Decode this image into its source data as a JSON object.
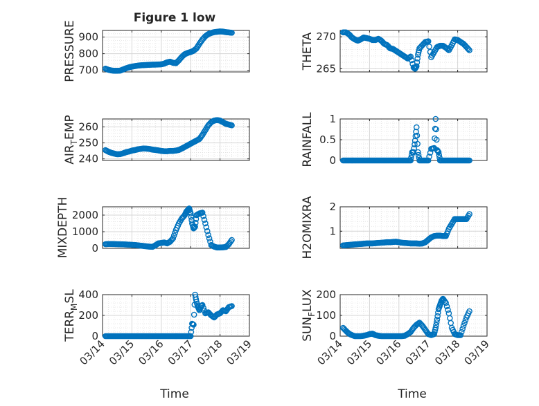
{
  "figure": {
    "title": "Figure 1 low",
    "xlabel": "Time",
    "xticks": [
      "03/14",
      "03/15",
      "03/16",
      "03/17",
      "03/18",
      "03/19"
    ],
    "marker_color": "#0072BD"
  },
  "chart_data": [
    {
      "type": "scatter",
      "ylabel": "PRESSURE",
      "ylim": [
        690,
        940
      ],
      "yticks": [
        700,
        800,
        900
      ],
      "xrange": [
        "03/14",
        "03/19"
      ],
      "grid": true,
      "x": [
        0.1,
        0.2,
        0.3,
        0.4,
        0.5,
        0.6,
        0.7,
        0.8,
        0.9,
        1.0,
        1.1,
        1.2,
        1.3,
        1.4,
        1.5,
        1.6,
        1.7,
        1.8,
        1.9,
        2.0,
        2.1,
        2.2,
        2.3,
        2.4,
        2.5,
        2.6,
        2.7,
        2.8,
        2.9,
        3.0,
        3.1,
        3.2,
        3.3,
        3.4,
        3.5,
        3.6,
        3.7,
        3.8,
        3.9,
        4.0,
        4.1,
        4.2,
        4.3,
        4.4
      ],
      "y": [
        710,
        703,
        699,
        697,
        697,
        698,
        705,
        712,
        718,
        722,
        725,
        728,
        730,
        731,
        732,
        733,
        734,
        734,
        735,
        736,
        740,
        748,
        752,
        745,
        743,
        760,
        781,
        797,
        805,
        810,
        818,
        832,
        860,
        885,
        905,
        918,
        925,
        930,
        932,
        934,
        933,
        930,
        928,
        926
      ]
    },
    {
      "type": "scatter",
      "ylabel": "THETA",
      "ylim": [
        264.5,
        271
      ],
      "yticks": [
        265,
        270
      ],
      "xrange": [
        "03/14",
        "03/19"
      ],
      "grid": true,
      "x": [
        0.1,
        0.2,
        0.3,
        0.4,
        0.5,
        0.6,
        0.7,
        0.8,
        0.9,
        1.0,
        1.1,
        1.2,
        1.3,
        1.4,
        1.5,
        1.6,
        1.7,
        1.8,
        1.9,
        2.0,
        2.1,
        2.2,
        2.3,
        2.4,
        2.5,
        2.55,
        2.6,
        2.65,
        2.7,
        2.8,
        2.9,
        3.0,
        3.1,
        3.2,
        3.3,
        3.4,
        3.5,
        3.6,
        3.7,
        3.8,
        3.9,
        4.0,
        4.1,
        4.2,
        4.3,
        4.4
      ],
      "y": [
        270.7,
        270.7,
        270.4,
        269.9,
        269.6,
        269.4,
        269.6,
        269.9,
        269.8,
        269.7,
        269.5,
        269.5,
        269.7,
        269.4,
        268.9,
        268.7,
        268.2,
        268.1,
        267.8,
        267.5,
        267.2,
        266.9,
        266.6,
        266.9,
        265.2,
        265,
        265.4,
        267.2,
        268.2,
        268.7,
        269.2,
        269.3,
        266.8,
        267.6,
        268.4,
        268.6,
        268.6,
        268.3,
        267.9,
        268.7,
        269.6,
        269.5,
        269.2,
        268.9,
        268.4,
        267.9
      ]
    },
    {
      "type": "scatter",
      "ylabel": "AIR_TEMP",
      "ylim": [
        239,
        265
      ],
      "yticks": [
        240,
        250,
        260
      ],
      "xrange": [
        "03/14",
        "03/19"
      ],
      "grid": true,
      "x": [
        0.1,
        0.2,
        0.3,
        0.4,
        0.5,
        0.6,
        0.7,
        0.8,
        0.9,
        1.0,
        1.1,
        1.2,
        1.3,
        1.4,
        1.5,
        1.6,
        1.7,
        1.8,
        1.9,
        2.0,
        2.1,
        2.2,
        2.3,
        2.4,
        2.5,
        2.6,
        2.7,
        2.8,
        2.9,
        3.0,
        3.1,
        3.2,
        3.3,
        3.4,
        3.5,
        3.6,
        3.7,
        3.8,
        3.9,
        4.0,
        4.1,
        4.2,
        4.3,
        4.4
      ],
      "y": [
        245.5,
        244.5,
        243.8,
        243.3,
        242.9,
        243,
        243.5,
        244.2,
        244.6,
        245.2,
        245.5,
        246,
        246.3,
        246.5,
        246.4,
        246.2,
        245.8,
        245.6,
        245.3,
        245,
        244.8,
        244.8,
        245,
        245,
        245.2,
        245.6,
        246.5,
        247.5,
        248.5,
        249.5,
        250.5,
        251.5,
        252.5,
        255,
        258,
        261,
        263,
        264,
        264.3,
        264,
        263,
        262,
        261.5,
        261
      ]
    },
    {
      "type": "scatter",
      "ylabel": "RAINFALL",
      "ylim": [
        0,
        1
      ],
      "yticks": [
        0,
        0.5,
        1
      ],
      "xrange": [
        "03/14",
        "03/19"
      ],
      "grid": true,
      "x": [
        0.1,
        0.2,
        0.3,
        0.4,
        0.5,
        0.6,
        0.7,
        0.8,
        0.9,
        1.0,
        1.1,
        1.2,
        1.3,
        1.4,
        1.5,
        1.6,
        1.7,
        1.8,
        1.9,
        2.0,
        2.1,
        2.2,
        2.3,
        2.4,
        2.45,
        2.5,
        2.55,
        2.6,
        2.65,
        2.7,
        2.8,
        2.9,
        3.0,
        3.1,
        3.2,
        3.25,
        3.3,
        3.35,
        3.4,
        3.5,
        3.6,
        3.7,
        3.8,
        3.9,
        4.0,
        4.1,
        4.2,
        4.3,
        4.4
      ],
      "y": [
        0,
        0,
        0,
        0,
        0,
        0,
        0,
        0,
        0,
        0,
        0,
        0,
        0,
        0,
        0,
        0,
        0,
        0,
        0,
        0,
        0,
        0,
        0,
        0,
        0.2,
        0.2,
        0.48,
        0.8,
        0.2,
        0,
        0,
        0,
        0,
        0.28,
        0.3,
        1,
        0.25,
        0.2,
        0,
        0,
        0,
        0,
        0,
        0,
        0,
        0,
        0,
        0,
        0
      ]
    },
    {
      "type": "scatter",
      "ylabel": "MIXDEPTH",
      "ylim": [
        0,
        2500
      ],
      "yticks": [
        0,
        1000,
        2000
      ],
      "xrange": [
        "03/14",
        "03/19"
      ],
      "grid": true,
      "x": [
        0.1,
        0.2,
        0.3,
        0.4,
        0.5,
        0.6,
        0.7,
        0.8,
        0.9,
        1.0,
        1.1,
        1.2,
        1.3,
        1.4,
        1.5,
        1.6,
        1.7,
        1.8,
        1.9,
        2.0,
        2.1,
        2.2,
        2.3,
        2.4,
        2.5,
        2.6,
        2.7,
        2.8,
        2.85,
        2.9,
        2.95,
        3.0,
        3.05,
        3.1,
        3.15,
        3.2,
        3.3,
        3.4,
        3.5,
        3.6,
        3.7,
        3.8,
        3.9,
        4.0,
        4.1,
        4.2,
        4.3,
        4.4
      ],
      "y": [
        250,
        260,
        260,
        255,
        250,
        245,
        240,
        230,
        220,
        210,
        200,
        180,
        160,
        140,
        120,
        100,
        90,
        180,
        300,
        320,
        350,
        300,
        400,
        600,
        1100,
        1500,
        1800,
        2000,
        2200,
        2300,
        2400,
        2100,
        1500,
        1200,
        1300,
        2000,
        2100,
        2150,
        1500,
        800,
        200,
        100,
        50,
        50,
        60,
        80,
        250,
        500
      ]
    },
    {
      "type": "scatter",
      "ylabel": "H2OMIXRA",
      "ylim": [
        0.3,
        2
      ],
      "yticks": [
        1,
        2
      ],
      "xrange": [
        "03/14",
        "03/19"
      ],
      "grid": true,
      "x": [
        0.1,
        0.2,
        0.3,
        0.4,
        0.5,
        0.6,
        0.7,
        0.8,
        0.9,
        1.0,
        1.1,
        1.2,
        1.3,
        1.4,
        1.5,
        1.6,
        1.7,
        1.8,
        1.9,
        2.0,
        2.1,
        2.2,
        2.3,
        2.4,
        2.5,
        2.6,
        2.7,
        2.8,
        2.9,
        3.0,
        3.1,
        3.2,
        3.3,
        3.4,
        3.5,
        3.6,
        3.7,
        3.8,
        3.9,
        4.0,
        4.1,
        4.2,
        4.3,
        4.4
      ],
      "y": [
        0.42,
        0.43,
        0.44,
        0.45,
        0.46,
        0.47,
        0.48,
        0.49,
        0.5,
        0.5,
        0.5,
        0.51,
        0.52,
        0.53,
        0.54,
        0.55,
        0.55,
        0.56,
        0.57,
        0.55,
        0.53,
        0.52,
        0.51,
        0.5,
        0.5,
        0.5,
        0.49,
        0.5,
        0.55,
        0.65,
        0.75,
        0.8,
        0.82,
        0.82,
        0.8,
        0.8,
        1.1,
        1.3,
        1.5,
        1.5,
        1.5,
        1.5,
        1.5,
        1.7
      ]
    },
    {
      "type": "scatter",
      "ylabel": "TERR_MSL",
      "ylim": [
        0,
        400
      ],
      "yticks": [
        0,
        200,
        400
      ],
      "xrange": [
        "03/14",
        "03/19"
      ],
      "grid": true,
      "x": [
        0.1,
        0.2,
        0.3,
        0.4,
        0.5,
        0.6,
        0.7,
        0.8,
        0.9,
        1.0,
        1.1,
        1.2,
        1.3,
        1.4,
        1.5,
        1.6,
        1.7,
        1.8,
        1.9,
        2.0,
        2.1,
        2.2,
        2.3,
        2.4,
        2.5,
        2.6,
        2.7,
        2.8,
        2.9,
        3.0,
        3.05,
        3.1,
        3.15,
        3.2,
        3.25,
        3.3,
        3.35,
        3.4,
        3.5,
        3.6,
        3.7,
        3.8,
        3.9,
        4.0,
        4.1,
        4.2,
        4.3,
        4.4
      ],
      "y": [
        0,
        0,
        0,
        0,
        0,
        0,
        0,
        0,
        0,
        0,
        0,
        0,
        0,
        0,
        0,
        0,
        0,
        0,
        0,
        0,
        0,
        0,
        0,
        0,
        0,
        0,
        0,
        0,
        0,
        0,
        120,
        110,
        400,
        330,
        280,
        250,
        290,
        300,
        220,
        230,
        200,
        180,
        210,
        220,
        250,
        240,
        280,
        290
      ]
    },
    {
      "type": "scatter",
      "ylabel": "SUN_FLUX",
      "ylim": [
        0,
        200
      ],
      "yticks": [
        0,
        100,
        200
      ],
      "xrange": [
        "03/14",
        "03/19"
      ],
      "grid": true,
      "x": [
        0.1,
        0.2,
        0.3,
        0.4,
        0.5,
        0.6,
        0.7,
        0.8,
        0.9,
        1.0,
        1.1,
        1.2,
        1.3,
        1.4,
        1.5,
        1.6,
        1.7,
        1.8,
        1.9,
        2.0,
        2.1,
        2.2,
        2.3,
        2.4,
        2.5,
        2.6,
        2.7,
        2.8,
        2.9,
        3.0,
        3.1,
        3.2,
        3.25,
        3.3,
        3.35,
        3.4,
        3.45,
        3.5,
        3.6,
        3.7,
        3.8,
        3.9,
        4.0,
        4.1,
        4.2,
        4.3,
        4.4
      ],
      "y": [
        40,
        25,
        12,
        5,
        0,
        0,
        0,
        2,
        5,
        10,
        12,
        5,
        2,
        0,
        0,
        0,
        0,
        0,
        0,
        0,
        0,
        2,
        10,
        20,
        40,
        55,
        65,
        50,
        30,
        10,
        5,
        10,
        40,
        80,
        130,
        150,
        170,
        180,
        160,
        110,
        40,
        10,
        5,
        5,
        50,
        90,
        120
      ]
    }
  ]
}
